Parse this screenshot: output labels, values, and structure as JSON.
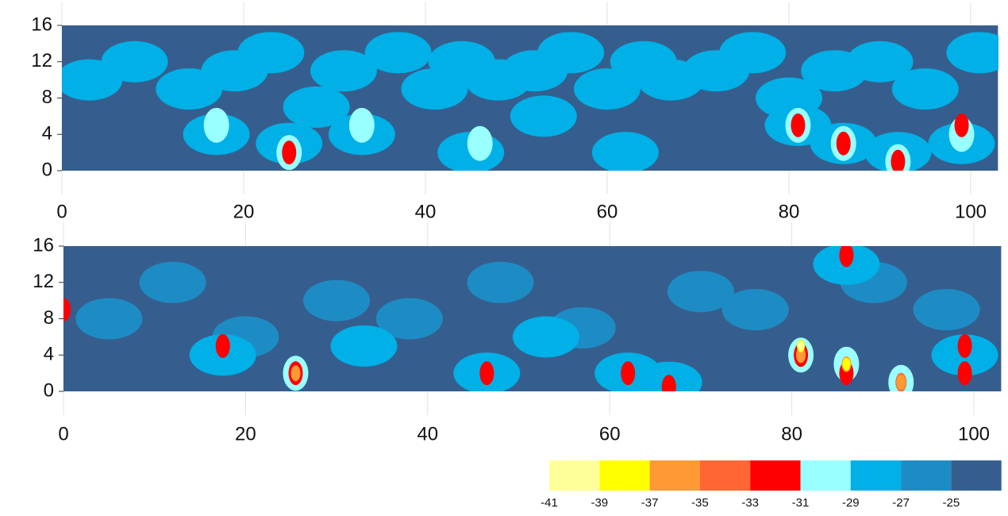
{
  "chart_data": [
    {
      "type": "contour",
      "xlim": [
        0,
        103
      ],
      "ylim": [
        0,
        16
      ],
      "xticks": [
        0,
        20,
        40,
        60,
        80,
        100
      ],
      "yticks": [
        0,
        4,
        8,
        12,
        16
      ],
      "grid": true,
      "x": [
        3,
        8,
        14,
        19,
        23,
        28,
        31,
        37,
        41,
        44,
        48,
        52,
        56,
        60,
        64,
        67,
        72,
        76,
        80,
        85,
        90,
        95,
        101,
        17,
        25,
        33,
        45,
        53,
        62,
        81,
        86,
        92,
        99,
        17,
        25,
        33,
        46,
        81,
        86,
        92,
        99,
        25,
        81,
        86,
        92,
        99
      ],
      "y": [
        10,
        12,
        9,
        11,
        13,
        7,
        11,
        13,
        9,
        12,
        10,
        11,
        13,
        9,
        12,
        10,
        11,
        13,
        8,
        11,
        12,
        9,
        13,
        4,
        3,
        4,
        2,
        6,
        2,
        5,
        3,
        2,
        3,
        5,
        2,
        5,
        3,
        5,
        3,
        1,
        4,
        2,
        5,
        3,
        1,
        5
      ],
      "level": [
        -29,
        -29,
        -29,
        -29,
        -29,
        -29,
        -29,
        -29,
        -29,
        -29,
        -29,
        -29,
        -29,
        -29,
        -29,
        -29,
        -29,
        -29,
        -29,
        -29,
        -29,
        -29,
        -29,
        -29,
        -29,
        -29,
        -29,
        -29,
        -29,
        -29,
        -29,
        -29,
        -29,
        -31,
        -31,
        -31,
        -31,
        -31,
        -31,
        -31,
        -31,
        -33,
        -33,
        -33,
        -33,
        -33
      ]
    },
    {
      "type": "contour",
      "xlim": [
        0,
        103
      ],
      "ylim": [
        0,
        16
      ],
      "xticks": [
        0,
        20,
        40,
        60,
        80,
        100
      ],
      "yticks": [
        0,
        4,
        8,
        12,
        16
      ],
      "grid": true,
      "x": [
        5,
        12,
        20,
        30,
        38,
        48,
        57,
        70,
        76,
        89,
        97,
        17.5,
        25.5,
        33,
        46.5,
        53,
        62,
        66.5,
        81,
        86,
        86,
        92,
        99,
        0,
        17.5,
        25.5,
        46.5,
        62,
        66.5,
        81,
        86,
        86,
        92,
        99,
        99,
        25.5,
        81,
        86,
        92,
        81,
        86,
        81
      ],
      "y": [
        8,
        12,
        6,
        10,
        8,
        12,
        7,
        11,
        9,
        12,
        9,
        4,
        2,
        5,
        2,
        6,
        2,
        1,
        4,
        3,
        14,
        1,
        4,
        9,
        5,
        2,
        2,
        2,
        0.5,
        4,
        2,
        15,
        1,
        5,
        2,
        2,
        4,
        3,
        1,
        5,
        3,
        5
      ],
      "level": [
        -27,
        -27,
        -27,
        -27,
        -27,
        -27,
        -27,
        -27,
        -27,
        -27,
        -27,
        -29,
        -31,
        -29,
        -29,
        -29,
        -29,
        -29,
        -31,
        -31,
        -29,
        -31,
        -29,
        -33,
        -33,
        -33,
        -33,
        -33,
        -33,
        -33,
        -33,
        -33,
        -35,
        -33,
        -33,
        -37,
        -37,
        -37,
        -37,
        -39,
        -39,
        -41
      ]
    }
  ],
  "colorbar": {
    "ticks": [
      -41,
      -39,
      -37,
      -35,
      -33,
      -31,
      -29,
      -27,
      -25
    ],
    "colors": [
      "#ffff99",
      "#ffff00",
      "#ff9933",
      "#ff6633",
      "#ff0000",
      "#99ffff",
      "#00b0e6",
      "#1e8cc4",
      "#355e8e"
    ]
  }
}
